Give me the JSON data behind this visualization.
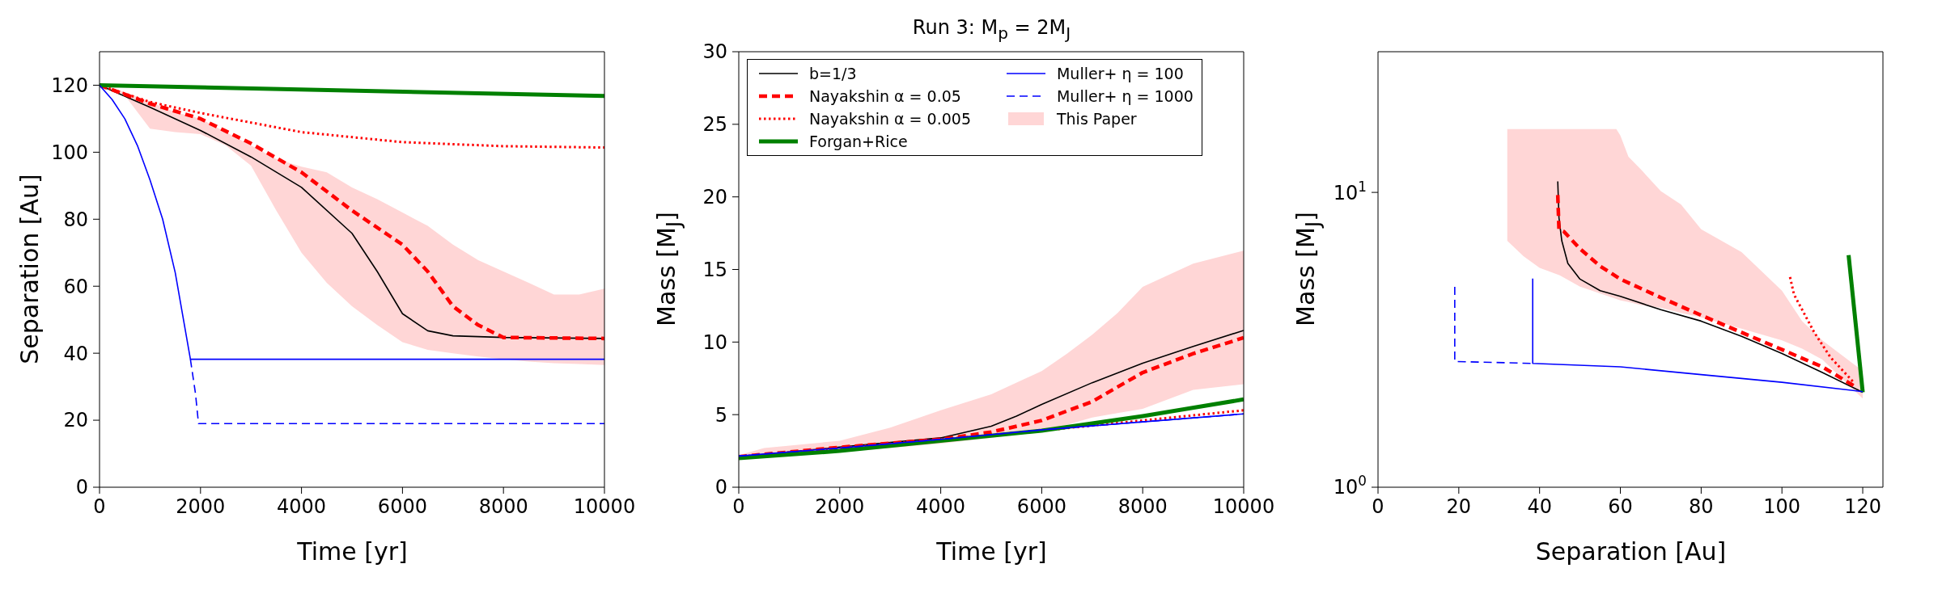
{
  "chart_data": [
    {
      "type": "line",
      "xlabel": "Time [yr]",
      "ylabel": "Separation [Au]",
      "xlim": [
        0,
        10000
      ],
      "ylim": [
        0,
        130
      ],
      "xticks": [
        0,
        2000,
        4000,
        6000,
        8000,
        10000
      ],
      "yticks": [
        0,
        20,
        40,
        60,
        80,
        100,
        120
      ],
      "series": [
        {
          "color": "#000000",
          "line_style": "solid",
          "x": [
            0,
            1000,
            2000,
            3000,
            4000,
            5000,
            5500,
            6000,
            6500,
            7000,
            8000,
            10000
          ],
          "values": [
            120,
            113.4,
            106.5,
            98.6,
            89.5,
            75.8,
            64.4,
            51.8,
            46.7,
            45.2,
            44.7,
            44.4
          ]
        },
        {
          "color": "#ff0000",
          "line_style": "dashed",
          "x": [
            0,
            1000,
            2000,
            3000,
            4000,
            5000,
            6000,
            6500,
            7000,
            7500,
            8000,
            10000
          ],
          "values": [
            120,
            114.5,
            110,
            102.6,
            94,
            82.6,
            72.4,
            64.4,
            54,
            48.4,
            44.7,
            44.4
          ]
        },
        {
          "color": "#ff0000",
          "line_style": "dotted",
          "x": [
            0,
            1000,
            2000,
            4000,
            6000,
            8000,
            10000
          ],
          "values": [
            120,
            115,
            111.7,
            106,
            103,
            101.8,
            101.4
          ]
        },
        {
          "color": "#008000",
          "line_style": "solid",
          "x": [
            0,
            10000
          ],
          "values": [
            120,
            116.8
          ]
        },
        {
          "color": "#0000ff",
          "line_style": "solid",
          "x": [
            0,
            250,
            500,
            750,
            1000,
            1250,
            1500,
            1800,
            10000
          ],
          "values": [
            120,
            115.7,
            110,
            102,
            91.7,
            80,
            64,
            38.2,
            38.2
          ]
        },
        {
          "color": "#0000ff",
          "line_style": "dashed",
          "x": [
            1800,
            1900,
            1960,
            10000
          ],
          "values": [
            38.2,
            28,
            19,
            19
          ]
        },
        {
          "color": "#ffd6d6",
          "x": [
            0,
            500,
            1000,
            1500,
            2000,
            2500,
            3000,
            3500,
            4000,
            4500,
            5000,
            5500,
            6000,
            6500,
            7000,
            7500,
            8000,
            8500,
            9000,
            9500,
            10000
          ],
          "values": [
            null,
            null,
            null,
            null,
            null,
            null,
            null,
            null,
            null,
            null,
            null,
            null,
            null,
            null,
            null,
            null,
            null,
            null,
            null,
            null,
            null
          ],
          "lower": [
            120,
            117,
            107,
            106,
            105.4,
            102,
            96,
            82.6,
            70,
            61,
            54,
            48.4,
            43.3,
            41,
            40,
            39,
            38.2,
            37.5,
            37,
            36.8,
            36.5
          ],
          "upper": [
            120,
            118,
            115,
            112,
            110,
            106,
            102,
            98,
            95.7,
            94,
            89.5,
            86,
            82,
            78,
            72.4,
            67.8,
            64.4,
            61,
            57.5,
            57.5,
            59.3
          ]
        }
      ]
    },
    {
      "type": "line",
      "title": "Run 3: M$_{p}$ = 2M$_{J}$",
      "xlabel": "Time [yr]",
      "ylabel": "Mass [M$_{J}$]",
      "xlim": [
        0,
        10000
      ],
      "ylim": [
        0,
        30
      ],
      "xticks": [
        0,
        2000,
        4000,
        6000,
        8000,
        10000
      ],
      "yticks": [
        0,
        5,
        10,
        15,
        20,
        25,
        30
      ],
      "legend": "top left",
      "series": [
        {
          "name": "b=1/3",
          "color": "#000000",
          "line_style": "solid",
          "x": [
            0,
            2000,
            4000,
            5000,
            5500,
            6000,
            7000,
            8000,
            9000,
            10000
          ],
          "values": [
            2.1,
            2.76,
            3.4,
            4.2,
            4.9,
            5.7,
            7.2,
            8.55,
            9.7,
            10.8
          ]
        },
        {
          "name": "Nayakshin α = 0.05",
          "color": "#ff0000",
          "line_style": "dashed",
          "x": [
            0,
            2000,
            4000,
            5000,
            6000,
            7000,
            8000,
            9000,
            10000
          ],
          "values": [
            2.1,
            2.75,
            3.3,
            3.8,
            4.6,
            5.9,
            7.9,
            9.2,
            10.3
          ]
        },
        {
          "name": "Nayakshin α = 0.005",
          "color": "#ff0000",
          "line_style": "dotted",
          "x": [
            0,
            2000,
            4000,
            6000,
            8000,
            10000
          ],
          "values": [
            2.1,
            2.7,
            3.3,
            3.9,
            4.6,
            5.3
          ]
        },
        {
          "name": "Forgan+Rice",
          "color": "#008000",
          "line_style": "solid",
          "x": [
            0,
            2000,
            4000,
            6000,
            8000,
            10000
          ],
          "values": [
            2.0,
            2.5,
            3.2,
            3.9,
            4.9,
            6.05
          ]
        },
        {
          "name": "Muller+ η = 100",
          "color": "#0000ff",
          "line_style": "solid",
          "x": [
            0,
            2000,
            4000,
            6000,
            8000,
            10000
          ],
          "values": [
            2.15,
            2.7,
            3.3,
            3.95,
            4.5,
            5.05
          ]
        },
        {
          "name": "Muller+ η = 1000",
          "color": "#0000ff",
          "line_style": "dashed",
          "x": [
            0,
            2000,
            4000,
            6000,
            8000,
            10000
          ],
          "values": [
            2.15,
            2.7,
            3.3,
            3.95,
            4.5,
            5.05
          ]
        },
        {
          "name": "This Paper",
          "color": "#ffd6d6",
          "x": [
            0,
            500,
            2000,
            3000,
            4000,
            5000,
            6000,
            6500,
            7000,
            7500,
            8000,
            9000,
            10000
          ],
          "values": [
            null,
            null,
            null,
            null,
            null,
            null,
            null,
            null,
            null,
            null,
            null,
            null,
            null
          ],
          "lower": [
            2.0,
            2.1,
            2.5,
            2.7,
            3.0,
            3.4,
            3.9,
            4.3,
            4.8,
            5.1,
            5.4,
            6.7,
            7.1
          ],
          "upper": [
            2.2,
            2.7,
            3.2,
            4.1,
            5.3,
            6.4,
            8.0,
            9.2,
            10.5,
            12.0,
            13.8,
            15.4,
            16.3
          ]
        }
      ]
    },
    {
      "type": "line",
      "xlabel": "Separation [Au]",
      "ylabel": "Mass [M$_{J}$]",
      "xlim": [
        0,
        125
      ],
      "ylim": [
        1,
        30
      ],
      "xticks": [
        0,
        20,
        40,
        60,
        80,
        100,
        120
      ],
      "yticks": [
        {
          "value": 1,
          "label": "10$^{0}$"
        },
        {
          "value": 10,
          "label": "10$^{1}$"
        }
      ],
      "log": "y",
      "series": [
        {
          "color": "#000000",
          "line_style": "solid",
          "x": [
            44.5,
            44.8,
            45.5,
            47,
            50,
            55,
            60,
            70,
            80,
            90,
            100,
            110,
            120
          ],
          "values": [
            10.9,
            8.2,
            6.85,
            5.74,
            5.08,
            4.64,
            4.44,
            4.0,
            3.66,
            3.25,
            2.84,
            2.45,
            2.1
          ]
        },
        {
          "color": "#ff0000",
          "line_style": "dashed",
          "x": [
            44.5,
            44.8,
            46,
            50,
            55,
            60,
            70,
            80,
            90,
            100,
            110,
            118
          ],
          "values": [
            9.8,
            7.5,
            7.37,
            6.44,
            5.62,
            5.08,
            4.4,
            3.83,
            3.35,
            2.93,
            2.56,
            2.2
          ]
        },
        {
          "color": "#ff0000",
          "line_style": "dotted",
          "x": [
            102,
            103,
            105,
            108,
            112,
            118
          ],
          "values": [
            5.16,
            4.5,
            4.0,
            3.35,
            2.76,
            2.25
          ]
        },
        {
          "color": "#008000",
          "line_style": "solid",
          "x": [
            116.5,
            120
          ],
          "values": [
            6.13,
            2.1
          ]
        },
        {
          "color": "#0000ff",
          "line_style": "solid",
          "x": [
            38.3,
            38.3,
            60,
            80,
            100,
            120
          ],
          "values": [
            5.1,
            2.63,
            2.56,
            2.41,
            2.27,
            2.11
          ]
        },
        {
          "color": "#0000ff",
          "line_style": "dashed",
          "x": [
            19,
            19,
            38.3
          ],
          "values": [
            4.78,
            2.67,
            2.63
          ]
        },
        {
          "color": "#ffd6d6",
          "x": [
            32,
            36,
            40,
            45,
            50,
            59,
            60,
            62,
            65,
            70,
            75,
            80,
            90,
            100,
            105,
            110,
            120
          ],
          "values": [
            null,
            null,
            null,
            null,
            null,
            null,
            null,
            null,
            null,
            null,
            null,
            null,
            null,
            null,
            null,
            null,
            null
          ],
          "lower": [
            6.85,
            6.08,
            5.55,
            5.23,
            4.79,
            4.35,
            4.3,
            4.25,
            4.15,
            4.06,
            3.9,
            3.77,
            3.45,
            3.15,
            2.95,
            2.71,
            2.0
          ],
          "upper": [
            16.4,
            16.4,
            16.4,
            16.4,
            16.4,
            16.4,
            15.6,
            13.2,
            12.0,
            10.1,
            9.1,
            7.5,
            6.27,
            4.64,
            3.66,
            3.15,
            2.48
          ]
        }
      ]
    }
  ]
}
